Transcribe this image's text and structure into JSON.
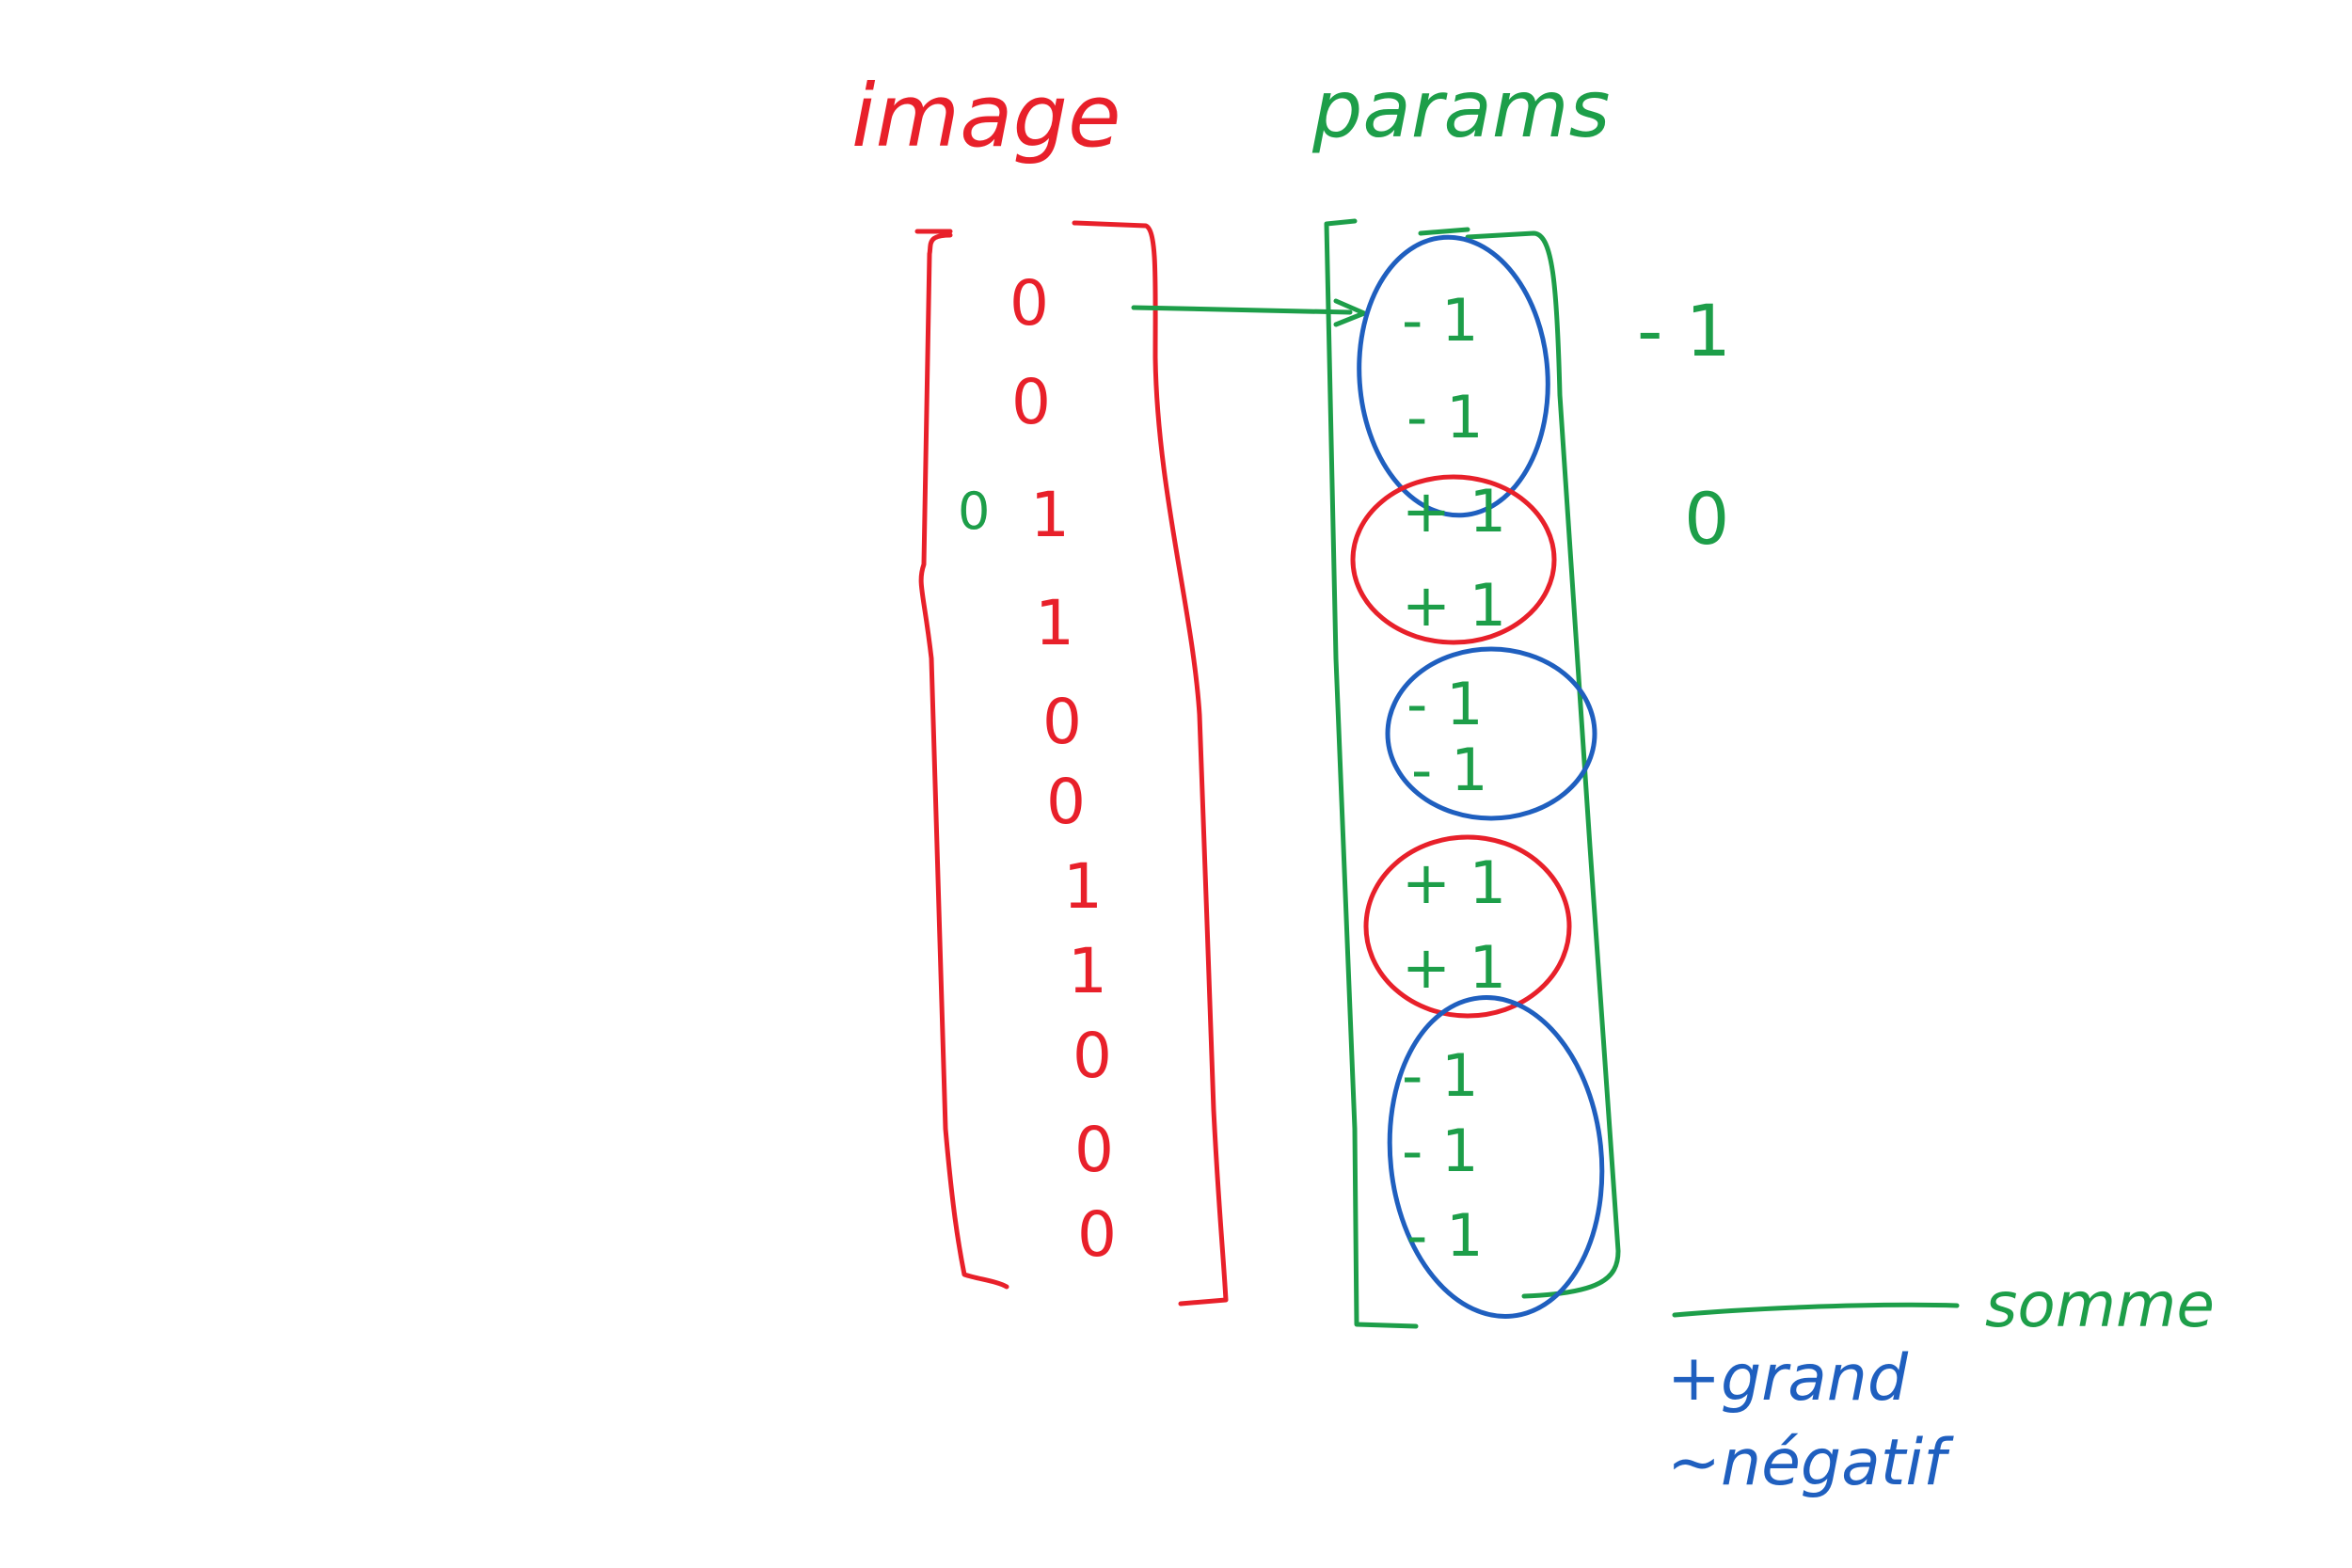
{
  "labels": {
    "image": "image",
    "params": "params",
    "somme": "somme",
    "note_line1": "+grand",
    "note_line2": "~négatif",
    "side_zero": "0"
  },
  "image_vector": [
    "0",
    "0",
    "1",
    "1",
    "0",
    "0",
    "1",
    "1",
    "0",
    "0",
    "0"
  ],
  "params_vector": [
    "- 1",
    "- 1",
    "+ 1",
    "+ 1",
    "- 1",
    "- 1",
    "+ 1",
    "+ 1",
    "- 1",
    "- 1",
    "- 1"
  ],
  "group_results": [
    "- 1",
    "0"
  ],
  "colors": {
    "image": "#e8202a",
    "params": "#1d9e49",
    "negative_group": "#1f5fbf",
    "positive_group": "#e8202a"
  },
  "groups": [
    {
      "color": "blue"
    },
    {
      "color": "red"
    },
    {
      "color": "blue"
    },
    {
      "color": "red"
    },
    {
      "color": "blue"
    }
  ]
}
